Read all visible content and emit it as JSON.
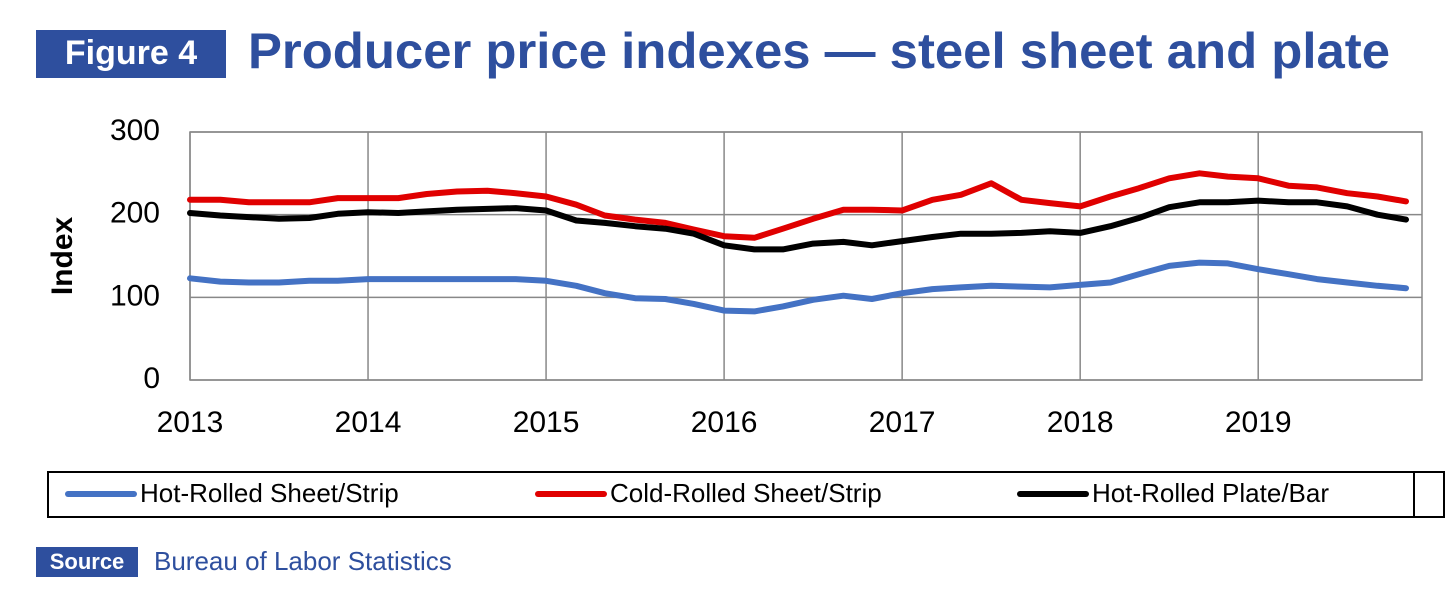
{
  "chart_data": {
    "type": "line",
    "figure_label": "Figure 4",
    "title": "Producer price indexes — steel sheet and plate",
    "y_label": "Index",
    "source_label": "Source",
    "source": "Bureau of Labor Statistics",
    "x": [
      2013,
      2013.17,
      2013.33,
      2013.5,
      2013.67,
      2013.83,
      2014,
      2014.17,
      2014.33,
      2014.5,
      2014.67,
      2014.83,
      2015,
      2015.17,
      2015.33,
      2015.5,
      2015.67,
      2015.83,
      2016,
      2016.17,
      2016.33,
      2016.5,
      2016.67,
      2016.83,
      2017,
      2017.17,
      2017.33,
      2017.5,
      2017.67,
      2017.83,
      2018,
      2018.17,
      2018.33,
      2018.5,
      2018.67,
      2018.83,
      2019,
      2019.17,
      2019.33,
      2019.5,
      2019.67,
      2019.83
    ],
    "xlim": [
      2013,
      2019.92
    ],
    "xticks": [
      2013,
      2014,
      2015,
      2016,
      2017,
      2018,
      2019
    ],
    "ylim": [
      0,
      300
    ],
    "yticks": [
      0,
      100,
      200,
      300
    ],
    "grid": true,
    "legend": "bottom",
    "series": [
      {
        "name": "Hot-Rolled Sheet/Strip",
        "color": "#4472c4",
        "values": [
          123,
          119,
          118,
          118,
          120,
          120,
          122,
          122,
          122,
          122,
          122,
          122,
          120,
          114,
          105,
          99,
          98,
          92,
          84,
          83,
          89,
          97,
          102,
          98,
          105,
          110,
          112,
          114,
          113,
          112,
          115,
          118,
          128,
          138,
          142,
          141,
          134,
          128,
          122,
          118,
          114,
          111
        ]
      },
      {
        "name": "Cold-Rolled Sheet/Strip",
        "color": "#e00000",
        "values": [
          218,
          218,
          215,
          215,
          215,
          220,
          220,
          220,
          225,
          228,
          229,
          226,
          222,
          212,
          199,
          194,
          190,
          182,
          174,
          172,
          183,
          195,
          206,
          206,
          205,
          218,
          224,
          238,
          218,
          214,
          210,
          222,
          232,
          244,
          250,
          246,
          244,
          235,
          233,
          226,
          222,
          216
        ]
      },
      {
        "name": "Hot-Rolled Plate/Bar",
        "color": "#000000",
        "values": [
          202,
          199,
          197,
          195,
          196,
          201,
          203,
          202,
          204,
          206,
          207,
          208,
          205,
          193,
          190,
          186,
          183,
          177,
          163,
          158,
          158,
          165,
          167,
          163,
          168,
          173,
          177,
          177,
          178,
          180,
          178,
          186,
          196,
          209,
          215,
          215,
          217,
          215,
          215,
          210,
          200,
          194
        ]
      }
    ]
  }
}
